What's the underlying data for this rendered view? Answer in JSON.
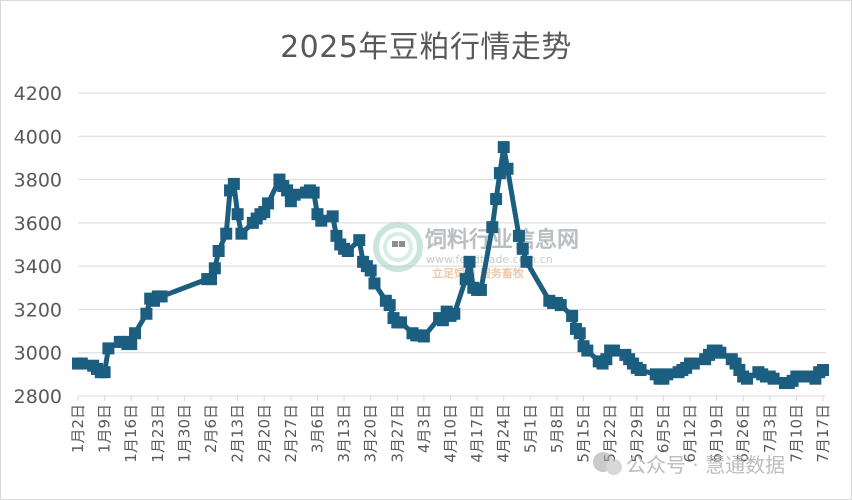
{
  "chart_data": {
    "type": "line",
    "title": "2025年豆粕行情走势",
    "xlabel": "",
    "ylabel": "",
    "ylim": [
      2800,
      4200
    ],
    "yticks": [
      2800,
      3000,
      3200,
      3400,
      3600,
      3800,
      4000,
      4200
    ],
    "grid": true,
    "legend": "none",
    "x_tick_labels": [
      "1月2日",
      "1月9日",
      "1月16日",
      "1月23日",
      "1月30日",
      "2月6日",
      "2月13日",
      "2月20日",
      "2月27日",
      "3月6日",
      "3月13日",
      "3月20日",
      "3月27日",
      "4月3日",
      "4月10日",
      "4月17日",
      "4月24日",
      "5月1日",
      "5月8日",
      "5月15日",
      "5月22日",
      "5月29日",
      "6月5日",
      "6月12日",
      "6月19日",
      "6月26日",
      "7月3日",
      "7月10日",
      "7月17日"
    ],
    "series": [
      {
        "name": "豆粕",
        "color": "#1b5e80",
        "marker": "square",
        "points": [
          [
            "1/2",
            2950
          ],
          [
            "1/3",
            2950
          ],
          [
            "1/6",
            2940
          ],
          [
            "1/7",
            2925
          ],
          [
            "1/8",
            2910
          ],
          [
            "1/9",
            2910
          ],
          [
            "1/10",
            3020
          ],
          [
            "1/13",
            3050
          ],
          [
            "1/14",
            3050
          ],
          [
            "1/15",
            3040
          ],
          [
            "1/16",
            3040
          ],
          [
            "1/17",
            3090
          ],
          [
            "1/20",
            3180
          ],
          [
            "1/21",
            3250
          ],
          [
            "1/22",
            3240
          ],
          [
            "1/23",
            3260
          ],
          [
            "1/24",
            3260
          ],
          [
            "2/5",
            3340
          ],
          [
            "2/6",
            3340
          ],
          [
            "2/7",
            3390
          ],
          [
            "2/8",
            3470
          ],
          [
            "2/10",
            3550
          ],
          [
            "2/11",
            3750
          ],
          [
            "2/12",
            3780
          ],
          [
            "2/13",
            3640
          ],
          [
            "2/14",
            3550
          ],
          [
            "2/17",
            3600
          ],
          [
            "2/18",
            3620
          ],
          [
            "2/19",
            3640
          ],
          [
            "2/20",
            3650
          ],
          [
            "2/21",
            3690
          ],
          [
            "2/24",
            3800
          ],
          [
            "2/25",
            3770
          ],
          [
            "2/26",
            3750
          ],
          [
            "2/27",
            3700
          ],
          [
            "2/28",
            3730
          ],
          [
            "3/3",
            3740
          ],
          [
            "3/4",
            3750
          ],
          [
            "3/5",
            3740
          ],
          [
            "3/6",
            3640
          ],
          [
            "3/7",
            3610
          ],
          [
            "3/10",
            3630
          ],
          [
            "3/11",
            3540
          ],
          [
            "3/12",
            3500
          ],
          [
            "3/13",
            3480
          ],
          [
            "3/14",
            3470
          ],
          [
            "3/17",
            3520
          ],
          [
            "3/18",
            3420
          ],
          [
            "3/19",
            3400
          ],
          [
            "3/20",
            3380
          ],
          [
            "3/21",
            3320
          ],
          [
            "3/24",
            3240
          ],
          [
            "3/25",
            3220
          ],
          [
            "3/26",
            3160
          ],
          [
            "3/27",
            3140
          ],
          [
            "3/28",
            3140
          ],
          [
            "3/31",
            3090
          ],
          [
            "4/1",
            3080
          ],
          [
            "4/2",
            3080
          ],
          [
            "4/3",
            3075
          ],
          [
            "4/7",
            3160
          ],
          [
            "4/8",
            3150
          ],
          [
            "4/9",
            3190
          ],
          [
            "4/10",
            3170
          ],
          [
            "4/11",
            3180
          ],
          [
            "4/14",
            3340
          ],
          [
            "4/15",
            3420
          ],
          [
            "4/16",
            3300
          ],
          [
            "4/17",
            3290
          ],
          [
            "4/18",
            3290
          ],
          [
            "4/21",
            3580
          ],
          [
            "4/22",
            3710
          ],
          [
            "4/23",
            3830
          ],
          [
            "4/24",
            3950
          ],
          [
            "4/25",
            3850
          ],
          [
            "4/28",
            3540
          ],
          [
            "4/29",
            3480
          ],
          [
            "4/30",
            3420
          ],
          [
            "5/6",
            3240
          ],
          [
            "5/7",
            3230
          ],
          [
            "5/8",
            3230
          ],
          [
            "5/9",
            3220
          ],
          [
            "5/12",
            3170
          ],
          [
            "5/13",
            3110
          ],
          [
            "5/14",
            3090
          ],
          [
            "5/15",
            3030
          ],
          [
            "5/16",
            3010
          ],
          [
            "5/19",
            2960
          ],
          [
            "5/20",
            2950
          ],
          [
            "5/21",
            2970
          ],
          [
            "5/22",
            3010
          ],
          [
            "5/23",
            3010
          ],
          [
            "5/26",
            2990
          ],
          [
            "5/27",
            2970
          ],
          [
            "5/28",
            2950
          ],
          [
            "5/29",
            2930
          ],
          [
            "5/30",
            2920
          ],
          [
            "6/3",
            2900
          ],
          [
            "6/4",
            2880
          ],
          [
            "6/5",
            2880
          ],
          [
            "6/6",
            2900
          ],
          [
            "6/9",
            2910
          ],
          [
            "6/10",
            2920
          ],
          [
            "6/11",
            2930
          ],
          [
            "6/12",
            2950
          ],
          [
            "6/13",
            2950
          ],
          [
            "6/16",
            2970
          ],
          [
            "6/17",
            2990
          ],
          [
            "6/18",
            3010
          ],
          [
            "6/19",
            3010
          ],
          [
            "6/20",
            3000
          ],
          [
            "6/23",
            2970
          ],
          [
            "6/24",
            2950
          ],
          [
            "6/25",
            2920
          ],
          [
            "6/26",
            2890
          ],
          [
            "6/27",
            2880
          ],
          [
            "6/30",
            2910
          ],
          [
            "7/1",
            2900
          ],
          [
            "7/2",
            2890
          ],
          [
            "7/3",
            2890
          ],
          [
            "7/4",
            2880
          ],
          [
            "7/7",
            2860
          ],
          [
            "7/8",
            2860
          ],
          [
            "7/9",
            2870
          ],
          [
            "7/10",
            2890
          ],
          [
            "7/11",
            2890
          ],
          [
            "7/14",
            2890
          ],
          [
            "7/15",
            2880
          ],
          [
            "7/16",
            2910
          ],
          [
            "7/17",
            2920
          ]
        ]
      }
    ]
  },
  "watermarks": {
    "center_cn": "饲料行业信息网",
    "center_url": "www.feedtrade.com.cn",
    "center_sub": "立足饲料  服务畜牧",
    "bottom_right": "公众号 · 慧通数据"
  }
}
